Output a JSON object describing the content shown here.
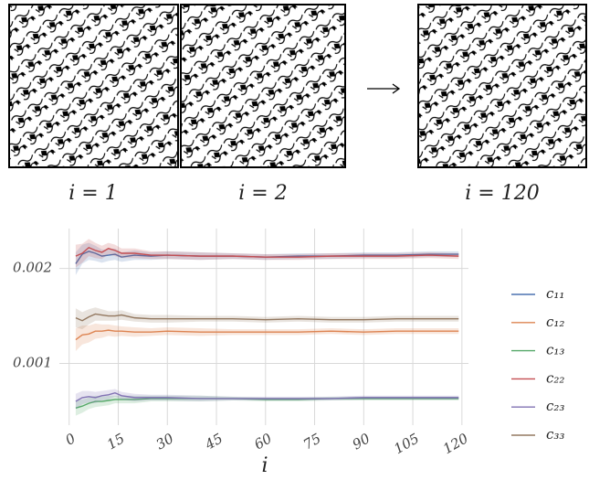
{
  "panels": [
    {
      "label": "i = 1"
    },
    {
      "label": "i = 2"
    },
    {
      "label": "i = 120"
    }
  ],
  "chart_data": {
    "type": "line",
    "xlabel": "i",
    "x": [
      2,
      4,
      6,
      8,
      10,
      12,
      14,
      16,
      20,
      25,
      30,
      40,
      50,
      60,
      70,
      80,
      90,
      100,
      110,
      119
    ],
    "xlim": [
      -3,
      122
    ],
    "xticks": [
      0,
      15,
      30,
      45,
      60,
      75,
      90,
      105,
      120
    ],
    "ylim": [
      0.00035,
      0.00242
    ],
    "yticks": [
      0.001,
      0.002
    ],
    "grid": true,
    "legend": "right",
    "series": [
      {
        "name": "c₁₁",
        "color": "#4c72b0",
        "values": [
          0.00205,
          0.00215,
          0.00218,
          0.00216,
          0.00213,
          0.00214,
          0.00215,
          0.00212,
          0.00214,
          0.00213,
          0.00214,
          0.00213,
          0.00213,
          0.00212,
          0.00213,
          0.00213,
          0.00214,
          0.00214,
          0.00215,
          0.00215
        ],
        "errors": [
          0.00012,
          0.0001,
          9e-05,
          8e-05,
          7e-05,
          6e-05,
          6e-05,
          5e-05,
          5e-05,
          4e-05,
          4e-05,
          4e-05,
          3e-05,
          3e-05,
          3e-05,
          3e-05,
          3e-05,
          3e-05,
          3e-05,
          3e-05
        ]
      },
      {
        "name": "c₁₂",
        "color": "#dd8452",
        "values": [
          0.00125,
          0.0013,
          0.00131,
          0.00134,
          0.00134,
          0.00135,
          0.00134,
          0.00134,
          0.00133,
          0.00133,
          0.00134,
          0.00133,
          0.00133,
          0.00133,
          0.00133,
          0.00134,
          0.00133,
          0.00134,
          0.00134,
          0.00134
        ],
        "errors": [
          0.00012,
          0.0001,
          9e-05,
          8e-05,
          7e-05,
          6e-05,
          6e-05,
          5e-05,
          5e-05,
          4e-05,
          4e-05,
          4e-05,
          3e-05,
          3e-05,
          3e-05,
          3e-05,
          3e-05,
          3e-05,
          3e-05,
          3e-05
        ]
      },
      {
        "name": "c₁₃",
        "color": "#55a868",
        "values": [
          0.00053,
          0.00055,
          0.00058,
          0.0006,
          0.0006,
          0.00061,
          0.00062,
          0.00062,
          0.00062,
          0.00063,
          0.00063,
          0.00063,
          0.00063,
          0.00062,
          0.00062,
          0.00063,
          0.00063,
          0.00063,
          0.00063,
          0.00063
        ],
        "errors": [
          8e-05,
          7e-05,
          6e-05,
          6e-05,
          5e-05,
          5e-05,
          4e-05,
          4e-05,
          4e-05,
          3e-05,
          3e-05,
          3e-05,
          2e-05,
          2e-05,
          2e-05,
          2e-05,
          2e-05,
          2e-05,
          2e-05,
          2e-05
        ]
      },
      {
        "name": "c₂₂",
        "color": "#c44e52",
        "values": [
          0.00213,
          0.00216,
          0.00222,
          0.00219,
          0.00217,
          0.00221,
          0.00219,
          0.00216,
          0.00216,
          0.00214,
          0.00214,
          0.00213,
          0.00213,
          0.00212,
          0.00212,
          0.00213,
          0.00213,
          0.00213,
          0.00214,
          0.00213
        ],
        "errors": [
          0.00012,
          0.0001,
          9e-05,
          8e-05,
          7e-05,
          6e-05,
          6e-05,
          5e-05,
          5e-05,
          4e-05,
          4e-05,
          4e-05,
          3e-05,
          3e-05,
          3e-05,
          3e-05,
          3e-05,
          3e-05,
          3e-05,
          3e-05
        ]
      },
      {
        "name": "c₂₃",
        "color": "#8172b3",
        "values": [
          0.0006,
          0.00064,
          0.00065,
          0.00064,
          0.00066,
          0.00067,
          0.00069,
          0.00066,
          0.00064,
          0.00064,
          0.00064,
          0.00063,
          0.00063,
          0.00063,
          0.00063,
          0.00063,
          0.00064,
          0.00064,
          0.00064,
          0.00064
        ],
        "errors": [
          8e-05,
          7e-05,
          6e-05,
          6e-05,
          5e-05,
          5e-05,
          4e-05,
          4e-05,
          4e-05,
          3e-05,
          3e-05,
          3e-05,
          2e-05,
          2e-05,
          2e-05,
          2e-05,
          2e-05,
          2e-05,
          2e-05,
          2e-05
        ]
      },
      {
        "name": "c₃₃",
        "color": "#937860",
        "values": [
          0.00148,
          0.00145,
          0.00149,
          0.00152,
          0.00151,
          0.0015,
          0.0015,
          0.00151,
          0.00148,
          0.00147,
          0.00147,
          0.00147,
          0.00147,
          0.00146,
          0.00147,
          0.00146,
          0.00146,
          0.00147,
          0.00147,
          0.00147
        ],
        "errors": [
          0.0001,
          9e-05,
          8e-05,
          7e-05,
          6e-05,
          5e-05,
          5e-05,
          5e-05,
          4e-05,
          4e-05,
          4e-05,
          3e-05,
          3e-05,
          3e-05,
          3e-05,
          3e-05,
          3e-05,
          3e-05,
          3e-05,
          3e-05
        ]
      }
    ]
  }
}
